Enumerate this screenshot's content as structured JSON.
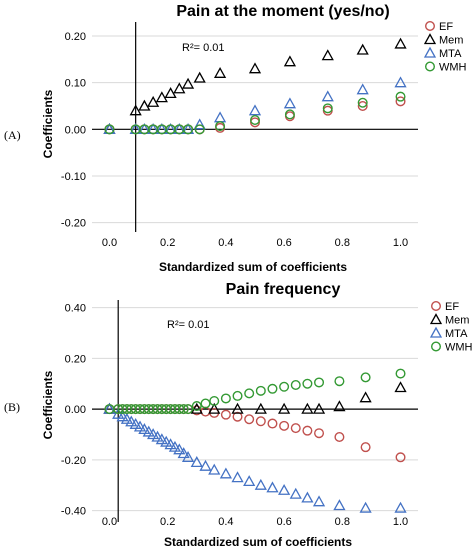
{
  "panel_letters": [
    "(A)",
    "(B)"
  ],
  "chart_data": [
    {
      "type": "scatter",
      "title": "Pain at the moment (yes/no)",
      "xlabel": "Standardized sum of coefficients",
      "ylabel": "Coefficients",
      "xlim": [
        -0.06,
        1.06
      ],
      "ylim": [
        -0.22,
        0.23
      ],
      "xticks": [
        "0.0",
        "0.2",
        "0.4",
        "0.6",
        "0.8",
        "1.0"
      ],
      "yticks": [
        "0.20",
        "0.10",
        "0.00",
        "-0.10",
        "-0.20"
      ],
      "annotation": "R²= 0.01",
      "legend_position": "top-right",
      "vline_x": 0.09,
      "series": [
        {
          "name": "EF",
          "marker": "circle",
          "color": "#c0504d",
          "x": [
            0.0,
            0.09,
            0.12,
            0.15,
            0.18,
            0.21,
            0.24,
            0.27,
            0.31,
            0.38,
            0.5,
            0.62,
            0.75,
            0.87,
            1.0
          ],
          "y": [
            0.0,
            0.0,
            0.0,
            0.0,
            0.0,
            0.0,
            0.0,
            0.0,
            0.0,
            0.003,
            0.015,
            0.028,
            0.04,
            0.05,
            0.06
          ]
        },
        {
          "name": "Mem",
          "marker": "triangle",
          "color": "#000000",
          "x": [
            0.0,
            0.09,
            0.12,
            0.15,
            0.18,
            0.21,
            0.24,
            0.27,
            0.31,
            0.38,
            0.5,
            0.62,
            0.75,
            0.87,
            1.0
          ],
          "y": [
            0.0,
            0.04,
            0.05,
            0.058,
            0.068,
            0.077,
            0.087,
            0.097,
            0.11,
            0.12,
            0.13,
            0.145,
            0.158,
            0.17,
            0.183
          ]
        },
        {
          "name": "MTA",
          "marker": "triangle",
          "color": "#4472c4",
          "x": [
            0.0,
            0.09,
            0.12,
            0.15,
            0.18,
            0.21,
            0.24,
            0.27,
            0.31,
            0.38,
            0.5,
            0.62,
            0.75,
            0.87,
            1.0
          ],
          "y": [
            0.0,
            0.0,
            0.0,
            0.0,
            0.0,
            0.0,
            0.0,
            0.0,
            0.01,
            0.025,
            0.04,
            0.055,
            0.07,
            0.085,
            0.1
          ]
        },
        {
          "name": "WMH",
          "marker": "circle",
          "color": "#339933",
          "x": [
            0.0,
            0.09,
            0.12,
            0.15,
            0.18,
            0.21,
            0.24,
            0.27,
            0.31,
            0.38,
            0.5,
            0.62,
            0.75,
            0.87,
            1.0
          ],
          "y": [
            0.0,
            0.0,
            0.0,
            0.0,
            0.0,
            0.0,
            0.0,
            0.0,
            0.0,
            0.007,
            0.02,
            0.032,
            0.045,
            0.057,
            0.07
          ]
        }
      ]
    },
    {
      "type": "scatter",
      "title": "Pain frequency",
      "xlabel": "Standardized sum of coefficients",
      "ylabel": "Coefficients",
      "xlim": [
        -0.06,
        1.06
      ],
      "ylim": [
        -0.445,
        0.43
      ],
      "xticks": [
        "0.0",
        "0.2",
        "0.4",
        "0.6",
        "0.8",
        "1.0"
      ],
      "yticks": [
        "0.40",
        "0.20",
        "0.00",
        "-0.20",
        "-0.40"
      ],
      "annotation": "R²= 0.01",
      "legend_position": "top-right",
      "vline_x": 0.03,
      "series": [
        {
          "name": "EF",
          "marker": "circle",
          "color": "#c0504d",
          "x": [
            0.0,
            0.03,
            0.045,
            0.06,
            0.075,
            0.09,
            0.105,
            0.12,
            0.135,
            0.15,
            0.165,
            0.18,
            0.195,
            0.21,
            0.225,
            0.24,
            0.255,
            0.27,
            0.3,
            0.33,
            0.36,
            0.4,
            0.44,
            0.48,
            0.52,
            0.56,
            0.6,
            0.64,
            0.68,
            0.72,
            0.79,
            0.88,
            1.0
          ],
          "y": [
            0.0,
            0.0,
            0.0,
            0.0,
            0.0,
            0.0,
            0.0,
            0.0,
            0.0,
            0.0,
            0.0,
            0.0,
            0.0,
            0.0,
            0.0,
            0.0,
            0.0,
            0.0,
            -0.005,
            -0.01,
            -0.015,
            -0.022,
            -0.03,
            -0.04,
            -0.048,
            -0.057,
            -0.066,
            -0.075,
            -0.085,
            -0.095,
            -0.11,
            -0.15,
            -0.19
          ]
        },
        {
          "name": "Mem",
          "marker": "triangle",
          "color": "#000000",
          "x": [
            0.0,
            0.3,
            0.36,
            0.44,
            0.52,
            0.6,
            0.68,
            0.72,
            0.79,
            0.88,
            1.0
          ],
          "y": [
            0.0,
            0.0,
            0.0,
            0.0,
            0.0,
            0.0,
            0.0,
            0.0,
            0.01,
            0.045,
            0.085
          ]
        },
        {
          "name": "MTA",
          "marker": "triangle",
          "color": "#4472c4",
          "x": [
            0.0,
            0.03,
            0.045,
            0.06,
            0.075,
            0.09,
            0.105,
            0.12,
            0.135,
            0.15,
            0.165,
            0.18,
            0.195,
            0.21,
            0.225,
            0.24,
            0.255,
            0.27,
            0.3,
            0.33,
            0.36,
            0.4,
            0.44,
            0.48,
            0.52,
            0.56,
            0.6,
            0.64,
            0.68,
            0.72,
            0.79,
            0.88,
            1.0
          ],
          "y": [
            0.0,
            -0.02,
            -0.03,
            -0.04,
            -0.05,
            -0.06,
            -0.07,
            -0.08,
            -0.09,
            -0.1,
            -0.11,
            -0.12,
            -0.13,
            -0.14,
            -0.15,
            -0.16,
            -0.175,
            -0.19,
            -0.21,
            -0.225,
            -0.24,
            -0.255,
            -0.27,
            -0.285,
            -0.3,
            -0.31,
            -0.32,
            -0.335,
            -0.35,
            -0.365,
            -0.38,
            -0.39,
            -0.39
          ]
        },
        {
          "name": "WMH",
          "marker": "circle",
          "color": "#339933",
          "x": [
            0.0,
            0.03,
            0.045,
            0.06,
            0.075,
            0.09,
            0.105,
            0.12,
            0.135,
            0.15,
            0.165,
            0.18,
            0.195,
            0.21,
            0.225,
            0.24,
            0.255,
            0.27,
            0.3,
            0.33,
            0.36,
            0.4,
            0.44,
            0.48,
            0.52,
            0.56,
            0.6,
            0.64,
            0.68,
            0.72,
            0.79,
            0.88,
            1.0
          ],
          "y": [
            0.0,
            0.0,
            0.0,
            0.0,
            0.0,
            0.0,
            0.0,
            0.0,
            0.0,
            0.0,
            0.0,
            0.0,
            0.0,
            0.0,
            0.0,
            0.0,
            0.0,
            0.0,
            0.012,
            0.022,
            0.032,
            0.042,
            0.052,
            0.062,
            0.072,
            0.08,
            0.088,
            0.095,
            0.1,
            0.105,
            0.11,
            0.125,
            0.14
          ]
        }
      ]
    }
  ]
}
